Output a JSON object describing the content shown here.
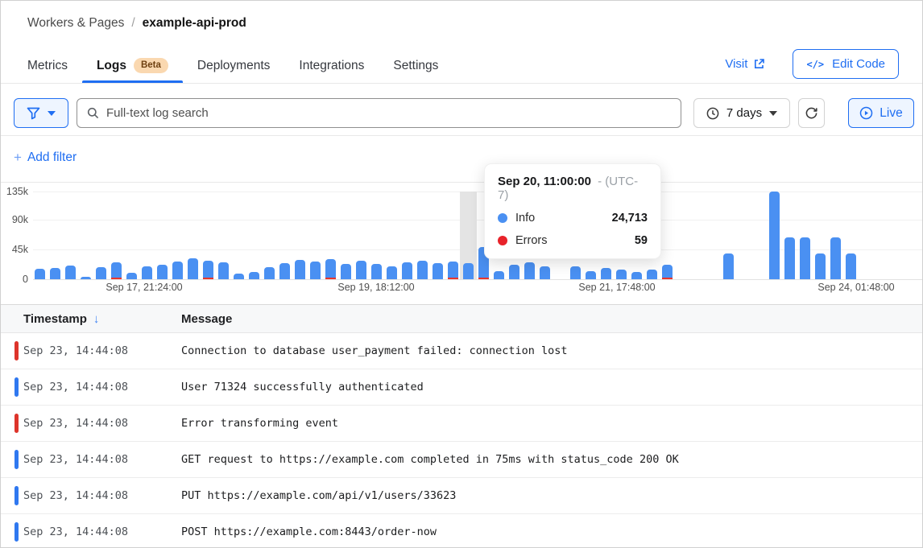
{
  "colors": {
    "accent": "#1f6ef2",
    "bar_info": "#4a90f2",
    "bar_error": "#e8352c",
    "row_error": "#dd342b",
    "row_info": "#2f78f0",
    "beta_badge_bg": "#fad8b0",
    "beta_badge_text": "#6e4010"
  },
  "icons": {
    "plus": "+",
    "sort_desc_arrow": "↓",
    "code": "</>",
    "named": [
      "filter-funnel-icon",
      "chevron-down-icon",
      "search-icon",
      "clock-icon",
      "refresh-icon",
      "play-circle-icon",
      "external-link-icon",
      "code-icon"
    ]
  },
  "breadcrumb": {
    "section": "Workers & Pages",
    "separator": "/",
    "current": "example-api-prod"
  },
  "tabs": {
    "items": [
      {
        "label": "Metrics"
      },
      {
        "label": "Logs",
        "badge": "Beta",
        "active": true
      },
      {
        "label": "Deployments"
      },
      {
        "label": "Integrations"
      },
      {
        "label": "Settings"
      }
    ]
  },
  "actions": {
    "visit_label": "Visit",
    "edit_code_label": "Edit Code"
  },
  "toolbar": {
    "search_placeholder": "Full-text log search",
    "search_value": "",
    "time_range_label": "7 days",
    "live_label": "Live"
  },
  "filters": {
    "add_label": "Add filter"
  },
  "tooltip": {
    "title": "Sep 20, 11:00:00",
    "suffix": "- (UTC-7)",
    "rows": [
      {
        "label": "Info",
        "value": "24,713",
        "color": "#4a90f2"
      },
      {
        "label": "Errors",
        "value": "59",
        "color": "#e8232a"
      }
    ]
  },
  "chart_data": {
    "type": "bar",
    "stacked": true,
    "title": "",
    "xlabel": "",
    "ylabel": "",
    "ylim": [
      0,
      135000
    ],
    "grid": true,
    "ytick_labels": [
      "135k",
      "90k",
      "45k",
      "0"
    ],
    "xtick_labels": [
      "Sep 17, 21:24:00",
      "Sep 19, 18:12:00",
      "Sep 21, 17:48:00",
      "Sep 24, 01:48:00"
    ],
    "series": [
      {
        "name": "Info",
        "color": "#4a90f2"
      },
      {
        "name": "Errors",
        "color": "#e8352c"
      }
    ],
    "hovered_bucket": {
      "index": 28,
      "time": "Sep 20, 11:00:00",
      "utc_offset": "UTC-7",
      "info": 24713,
      "errors": 59
    },
    "bars_info_thousands": [
      16,
      17,
      21,
      4,
      19,
      26,
      10,
      20,
      22,
      27,
      32,
      28,
      26,
      9,
      11,
      18,
      25,
      30,
      27,
      31,
      24,
      28,
      23,
      20,
      26,
      28,
      25,
      27,
      25,
      50,
      13,
      22,
      26,
      20,
      null,
      20,
      13,
      17,
      15,
      11,
      15,
      22,
      null,
      null,
      null,
      40,
      null,
      null,
      135,
      65,
      65,
      40,
      65,
      40,
      null,
      null,
      null
    ],
    "bars_with_error_indices": [
      5,
      11,
      19,
      27,
      29,
      41
    ]
  },
  "table": {
    "columns": [
      {
        "label": "Timestamp",
        "sorted": "desc"
      },
      {
        "label": "Message"
      }
    ],
    "rows": [
      {
        "level": "error",
        "timestamp": "Sep 23, 14:44:08",
        "message": "Connection to database user_payment failed: connection lost"
      },
      {
        "level": "info",
        "timestamp": "Sep 23, 14:44:08",
        "message": "User 71324 successfully authenticated"
      },
      {
        "level": "error",
        "timestamp": "Sep 23, 14:44:08",
        "message": "Error transforming event"
      },
      {
        "level": "info",
        "timestamp": "Sep 23, 14:44:08",
        "message": "GET request to https://example.com completed in 75ms with status_code 200 OK"
      },
      {
        "level": "info",
        "timestamp": "Sep 23, 14:44:08",
        "message": "PUT https://example.com/api/v1/users/33623"
      },
      {
        "level": "info",
        "timestamp": "Sep 23, 14:44:08",
        "message": "POST https://example.com:8443/order-now"
      }
    ]
  }
}
